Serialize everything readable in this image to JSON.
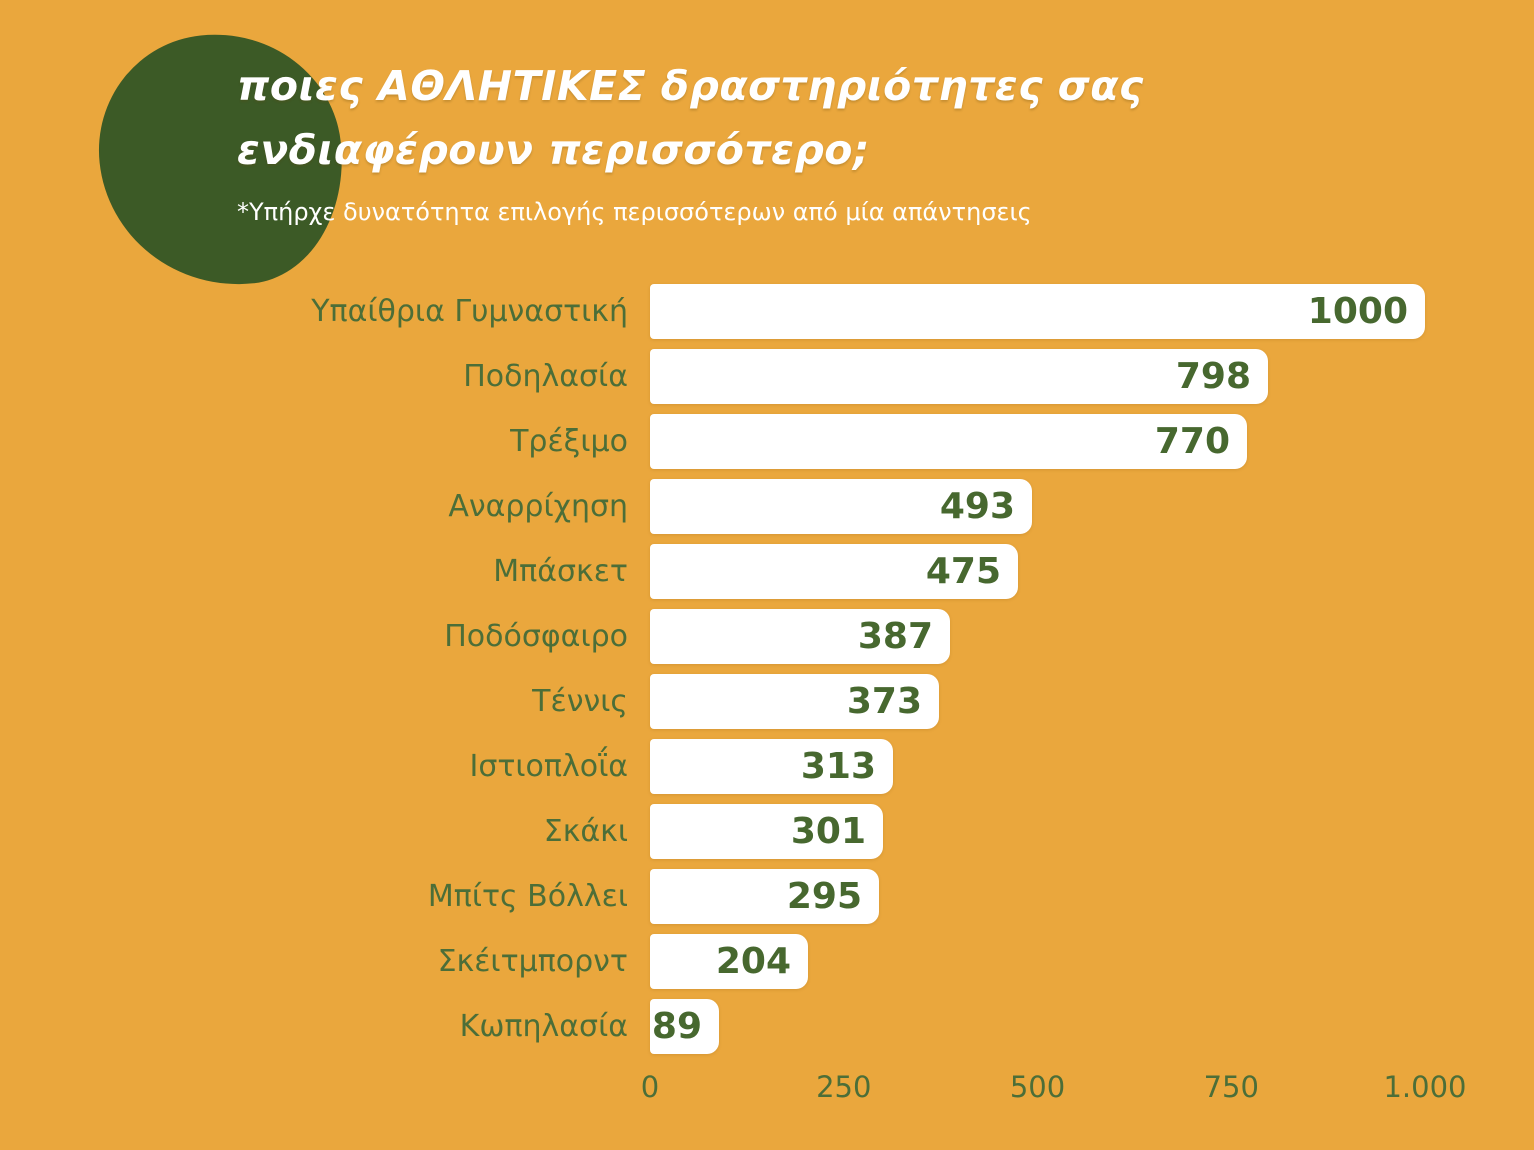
{
  "header": {
    "title_lines": [
      "ποιες ΑΘΛΗΤΙΚΕΣ δραστηριότητες σας",
      "ενδιαφέρουν περισσότερο;"
    ],
    "subtitle": "*Υπήρχε δυνατότητα επιλογής περισσότερων από μία απάντησεις"
  },
  "chart_data": {
    "type": "bar",
    "orientation": "horizontal",
    "title": "ποιες ΑΘΛΗΤΙΚΕΣ δραστηριότητες σας ενδιαφέρουν περισσότερο;",
    "subtitle": "*Υπήρχε δυνατότητα επιλογής περισσότερων από μία απάντησεις",
    "categories": [
      "Υπαίθρια Γυμναστική",
      "Ποδηλασία",
      "Τρέξιμο",
      "Αναρρίχηση",
      "Μπάσκετ",
      "Ποδόσφαιρο",
      "Τέννις",
      "Ιστιοπλοΐα",
      "Σκάκι",
      "Μπίτς Βόλλει",
      "Σκέιτμπορντ",
      "Κωπηλασία"
    ],
    "values": [
      1000,
      798,
      770,
      493,
      475,
      387,
      373,
      313,
      301,
      295,
      204,
      89
    ],
    "value_labels": [
      "1000",
      "798",
      "770",
      "493",
      "475",
      "387",
      "373",
      "313",
      "301",
      "295",
      "204",
      "89"
    ],
    "x_ticks": [
      {
        "value": 0,
        "label": "0"
      },
      {
        "value": 250,
        "label": "250"
      },
      {
        "value": 500,
        "label": "500"
      },
      {
        "value": 750,
        "label": "750"
      },
      {
        "value": 1000,
        "label": "1.000"
      }
    ],
    "xlim": [
      0,
      1000
    ],
    "grid": false,
    "legend": false
  },
  "colors": {
    "background": "#EAA73D",
    "blob": "#3C5A26",
    "bar_fill": "#FFFFFF",
    "label_green": "#4C6E38",
    "value_green": "#47682F",
    "title_white": "#FFFFFF"
  }
}
